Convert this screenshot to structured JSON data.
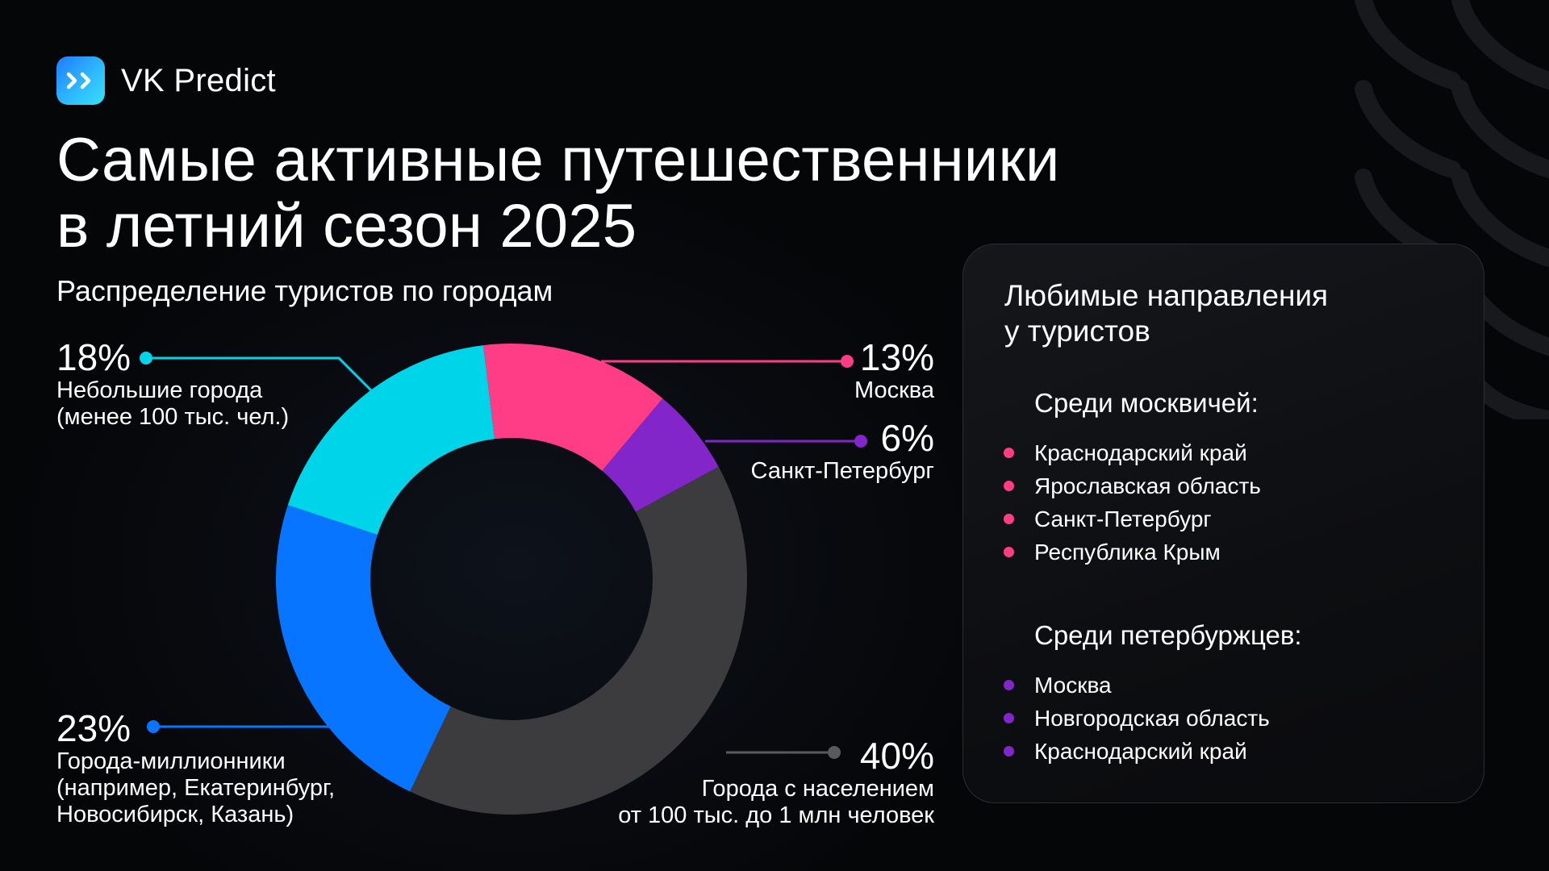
{
  "brand": {
    "name": "VK Predict"
  },
  "title_lines": [
    "Самые активные путешественники",
    "в летний сезон 2025"
  ],
  "chart_data": {
    "type": "pie",
    "donut": true,
    "title": "Распределение туристов по городам",
    "slices": [
      {
        "label": "13%",
        "value": 13,
        "name": "Москва",
        "color": "#ff3d86"
      },
      {
        "label": "6%",
        "value": 6,
        "name": "Санкт-Петербург",
        "color": "#8226c9"
      },
      {
        "label": "40%",
        "value": 40,
        "name": [
          "Города с населением",
          "от 100 тыс. до 1 млн человек"
        ],
        "color": "#3c3c3e"
      },
      {
        "label": "23%",
        "value": 23,
        "name": [
          "Города-миллионники",
          "(например, Екатеринбург,",
          "Новосибирск, Казань)"
        ],
        "color": "#0775ff"
      },
      {
        "label": "18%",
        "value": 18,
        "name": [
          "Небольшие города",
          "(менее 100 тыс. чел.)"
        ],
        "color": "#00d4e8"
      }
    ]
  },
  "panel": {
    "title_lines": [
      "Любимые направления",
      "у туристов"
    ],
    "groups": [
      {
        "heading": "Среди москвичей:",
        "color": "#ff3d86",
        "items": [
          "Краснодарский край",
          "Ярославская область",
          "Санкт-Петербург",
          "Республика Крым"
        ]
      },
      {
        "heading": "Среди петербуржцев:",
        "color": "#8226c9",
        "items": [
          "Москва",
          "Новгородская область",
          "Краснодарский край"
        ]
      }
    ]
  }
}
